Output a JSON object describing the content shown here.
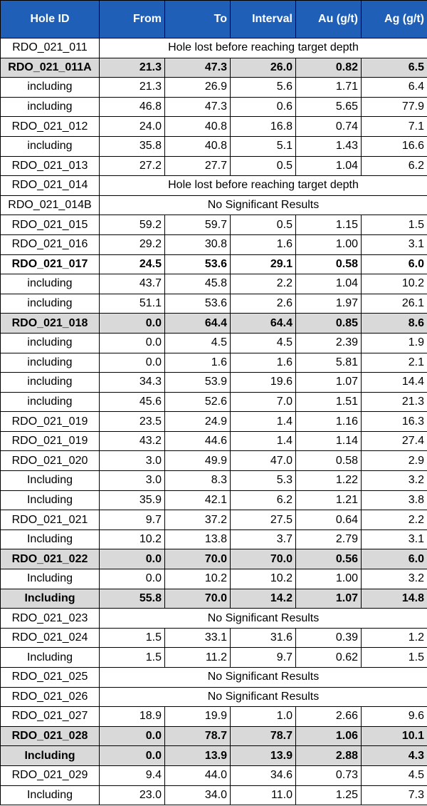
{
  "colors": {
    "header_bg": "#1f5fb8",
    "highlight_bg": "#d9d9d9"
  },
  "headers": [
    "Hole ID",
    "From",
    "To",
    "Interval",
    "Au (g/t)",
    "Ag (g/t)"
  ],
  "rows": [
    {
      "id": "RDO_021_011",
      "note": "Hole lost before reaching target depth"
    },
    {
      "id": "RDO_021_011A",
      "values": [
        "21.3",
        "47.3",
        "26.0",
        "0.82",
        "6.5"
      ],
      "bold": true,
      "highlight": true
    },
    {
      "id": "including",
      "values": [
        "21.3",
        "26.9",
        "5.6",
        "1.71",
        "6.4"
      ]
    },
    {
      "id": "including",
      "values": [
        "46.8",
        "47.3",
        "0.6",
        "5.65",
        "77.9"
      ]
    },
    {
      "id": "RDO_021_012",
      "values": [
        "24.0",
        "40.8",
        "16.8",
        "0.74",
        "7.1"
      ]
    },
    {
      "id": "including",
      "values": [
        "35.8",
        "40.8",
        "5.1",
        "1.43",
        "16.6"
      ]
    },
    {
      "id": "RDO_021_013",
      "values": [
        "27.2",
        "27.7",
        "0.5",
        "1.04",
        "6.2"
      ]
    },
    {
      "id": "RDO_021_014",
      "note": "Hole lost before reaching target depth"
    },
    {
      "id": "RDO_021_014B",
      "note": "No Significant Results"
    },
    {
      "id": "RDO_021_015",
      "values": [
        "59.2",
        "59.7",
        "0.5",
        "1.15",
        "1.5"
      ]
    },
    {
      "id": "RDO_021_016",
      "values": [
        "29.2",
        "30.8",
        "1.6",
        "1.00",
        "3.1"
      ]
    },
    {
      "id": "RDO_021_017",
      "values": [
        "24.5",
        "53.6",
        "29.1",
        "0.58",
        "6.0"
      ],
      "bold": true
    },
    {
      "id": "including",
      "values": [
        "43.7",
        "45.8",
        "2.2",
        "1.04",
        "10.2"
      ]
    },
    {
      "id": "including",
      "values": [
        "51.1",
        "53.6",
        "2.6",
        "1.97",
        "26.1"
      ]
    },
    {
      "id": "RDO_021_018",
      "values": [
        "0.0",
        "64.4",
        "64.4",
        "0.85",
        "8.6"
      ],
      "bold": true,
      "highlight": true
    },
    {
      "id": "including",
      "values": [
        "0.0",
        "4.5",
        "4.5",
        "2.39",
        "1.9"
      ]
    },
    {
      "id": "including",
      "values": [
        "0.0",
        "1.6",
        "1.6",
        "5.81",
        "2.1"
      ]
    },
    {
      "id": "including",
      "values": [
        "34.3",
        "53.9",
        "19.6",
        "1.07",
        "14.4"
      ]
    },
    {
      "id": "including",
      "values": [
        "45.6",
        "52.6",
        "7.0",
        "1.51",
        "21.3"
      ]
    },
    {
      "id": "RDO_021_019",
      "values": [
        "23.5",
        "24.9",
        "1.4",
        "1.16",
        "16.3"
      ]
    },
    {
      "id": "RDO_021_019",
      "values": [
        "43.2",
        "44.6",
        "1.4",
        "1.14",
        "27.4"
      ]
    },
    {
      "id": "RDO_021_020",
      "values": [
        "3.0",
        "49.9",
        "47.0",
        "0.58",
        "2.9"
      ]
    },
    {
      "id": "Including",
      "values": [
        "3.0",
        "8.3",
        "5.3",
        "1.22",
        "3.2"
      ]
    },
    {
      "id": "Including",
      "values": [
        "35.9",
        "42.1",
        "6.2",
        "1.21",
        "3.8"
      ]
    },
    {
      "id": "RDO_021_021",
      "values": [
        "9.7",
        "37.2",
        "27.5",
        "0.64",
        "2.2"
      ]
    },
    {
      "id": "Including",
      "values": [
        "10.2",
        "13.8",
        "3.7",
        "2.79",
        "3.1"
      ]
    },
    {
      "id": "RDO_021_022",
      "values": [
        "0.0",
        "70.0",
        "70.0",
        "0.56",
        "6.0"
      ],
      "bold": true,
      "highlight": true
    },
    {
      "id": "Including",
      "values": [
        "0.0",
        "10.2",
        "10.2",
        "1.00",
        "3.2"
      ]
    },
    {
      "id": "Including",
      "values": [
        "55.8",
        "70.0",
        "14.2",
        "1.07",
        "14.8"
      ],
      "bold": true,
      "highlight": true
    },
    {
      "id": "RDO_021_023",
      "note": "No Significant Results"
    },
    {
      "id": "RDO_021_024",
      "values": [
        "1.5",
        "33.1",
        "31.6",
        "0.39",
        "1.2"
      ]
    },
    {
      "id": "Including",
      "values": [
        "1.5",
        "11.2",
        "9.7",
        "0.62",
        "1.5"
      ]
    },
    {
      "id": "RDO_021_025",
      "note": "No Significant Results"
    },
    {
      "id": "RDO_021_026",
      "note": "No Significant Results"
    },
    {
      "id": "RDO_021_027",
      "values": [
        "18.9",
        "19.9",
        "1.0",
        "2.66",
        "9.6"
      ]
    },
    {
      "id": "RDO_021_028",
      "values": [
        "0.0",
        "78.7",
        "78.7",
        "1.06",
        "10.1"
      ],
      "bold": true,
      "highlight": true
    },
    {
      "id": "Including",
      "values": [
        "0.0",
        "13.9",
        "13.9",
        "2.88",
        "4.3"
      ],
      "bold": true,
      "highlight": true
    },
    {
      "id": "RDO_021_029",
      "values": [
        "9.4",
        "44.0",
        "34.6",
        "0.73",
        "4.5"
      ]
    },
    {
      "id": "Including",
      "values": [
        "23.0",
        "34.0",
        "11.0",
        "1.25",
        "7.3"
      ]
    }
  ]
}
